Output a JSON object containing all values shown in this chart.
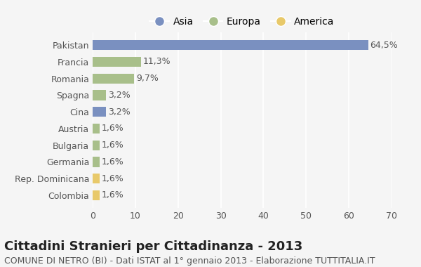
{
  "categories": [
    "Colombia",
    "Rep. Dominicana",
    "Germania",
    "Bulgaria",
    "Austria",
    "Cina",
    "Spagna",
    "Romania",
    "Francia",
    "Pakistan"
  ],
  "values": [
    1.6,
    1.6,
    1.6,
    1.6,
    1.6,
    3.2,
    3.2,
    9.7,
    11.3,
    64.5
  ],
  "labels": [
    "1,6%",
    "1,6%",
    "1,6%",
    "1,6%",
    "1,6%",
    "3,2%",
    "3,2%",
    "9,7%",
    "11,3%",
    "64,5%"
  ],
  "colors": [
    "#e8c96a",
    "#e8c96a",
    "#a8bf8a",
    "#a8bf8a",
    "#a8bf8a",
    "#7a90c0",
    "#a8bf8a",
    "#a8bf8a",
    "#a8bf8a",
    "#7a90c0"
  ],
  "legend": [
    {
      "label": "Asia",
      "color": "#7a90c0"
    },
    {
      "label": "Europa",
      "color": "#a8bf8a"
    },
    {
      "label": "America",
      "color": "#e8c96a"
    }
  ],
  "title": "Cittadini Stranieri per Cittadinanza - 2013",
  "subtitle": "COMUNE DI NETRO (BI) - Dati ISTAT al 1° gennaio 2013 - Elaborazione TUTTITALIA.IT",
  "xlim": [
    0,
    70
  ],
  "xticks": [
    0,
    10,
    20,
    30,
    40,
    50,
    60,
    70
  ],
  "background_color": "#f5f5f5",
  "bar_height": 0.6,
  "title_fontsize": 13,
  "subtitle_fontsize": 9,
  "label_fontsize": 9,
  "tick_fontsize": 9
}
